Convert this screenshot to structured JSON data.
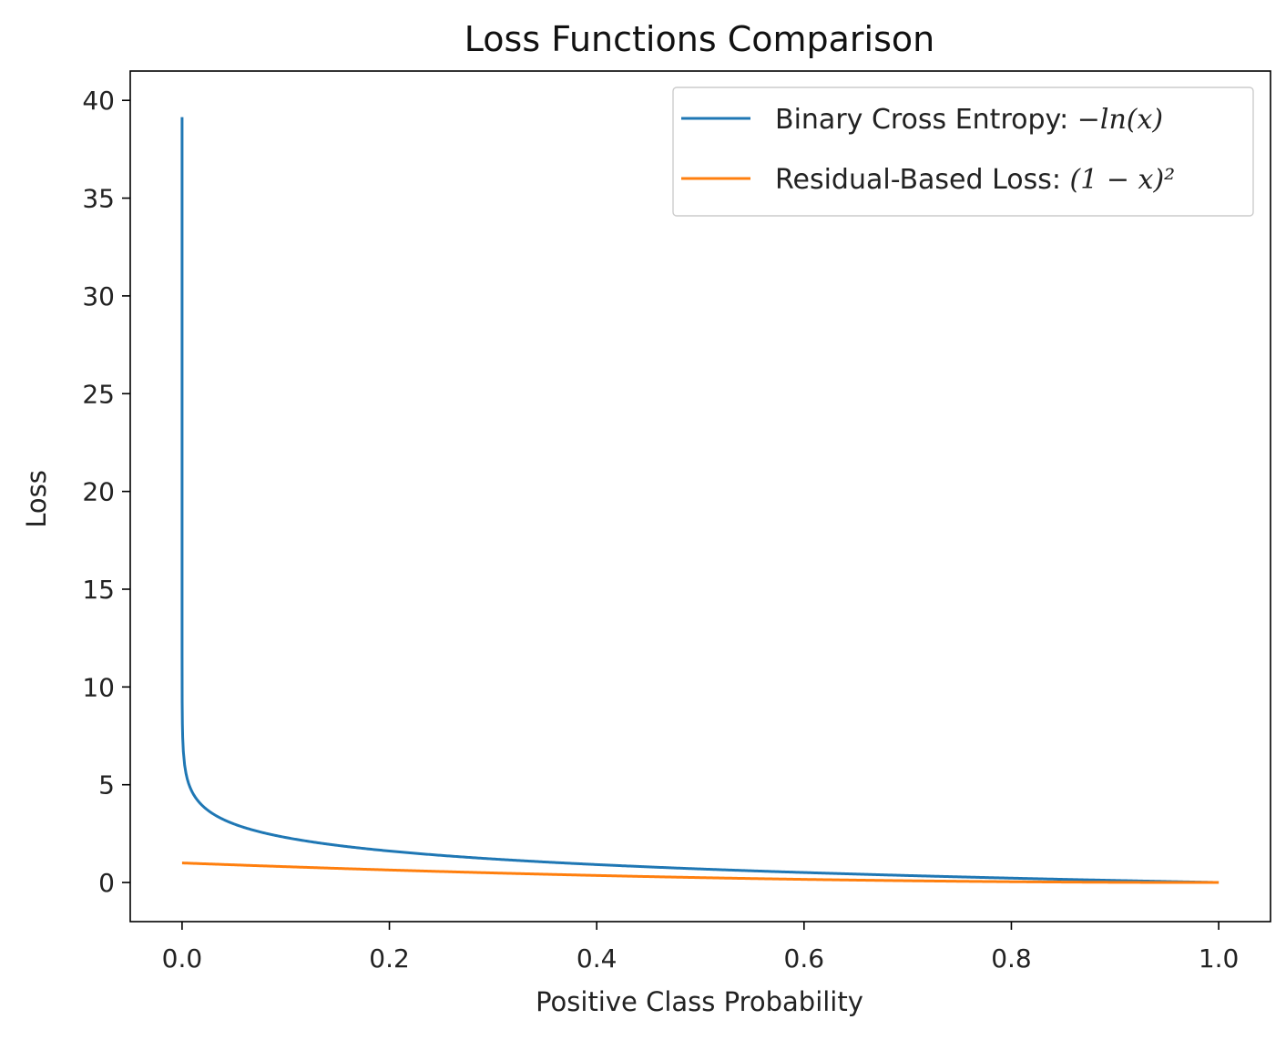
{
  "chart_data": {
    "type": "line",
    "title": "Loss Functions Comparison",
    "xlabel": "Positive Class Probability",
    "ylabel": "Loss",
    "xlim": [
      -0.05,
      1.05
    ],
    "ylim": [
      -2,
      41.5
    ],
    "x_ticks": [
      0.0,
      0.2,
      0.4,
      0.6,
      0.8,
      1.0
    ],
    "x_tick_labels": [
      "0.0",
      "0.2",
      "0.4",
      "0.6",
      "0.8",
      "1.0"
    ],
    "y_ticks": [
      0,
      5,
      10,
      15,
      20,
      25,
      30,
      35,
      40
    ],
    "y_tick_labels": [
      "0",
      "5",
      "10",
      "15",
      "20",
      "25",
      "30",
      "35",
      "40"
    ],
    "grid": false,
    "legend_position": "top-right",
    "x_range": [
      1e-17,
      1.0
    ],
    "series": [
      {
        "name": "Binary Cross Entropy: −ln(x)",
        "legend_prefix": "Binary Cross Entropy: ",
        "legend_math": "−ln(x)",
        "formula": "-ln(x)",
        "color": "#1f77b4",
        "x": [
          1e-17,
          0.001,
          0.01,
          0.02,
          0.05,
          0.1,
          0.2,
          0.3,
          0.4,
          0.5,
          0.6,
          0.7,
          0.8,
          0.9,
          1.0
        ],
        "y": [
          39.1,
          6.91,
          4.61,
          3.91,
          3.0,
          2.3,
          1.61,
          1.2,
          0.92,
          0.69,
          0.51,
          0.36,
          0.22,
          0.11,
          0.0
        ]
      },
      {
        "name": "Residual-Based Loss: (1 − x)²",
        "legend_prefix": "Residual-Based Loss: ",
        "legend_math": "(1 − x)²",
        "formula": "(1-x)^2",
        "color": "#ff7f0e",
        "x": [
          0.0,
          0.1,
          0.2,
          0.3,
          0.4,
          0.5,
          0.6,
          0.7,
          0.8,
          0.9,
          1.0
        ],
        "y": [
          1.0,
          0.81,
          0.64,
          0.49,
          0.36,
          0.25,
          0.16,
          0.09,
          0.04,
          0.01,
          0.0
        ]
      }
    ]
  }
}
